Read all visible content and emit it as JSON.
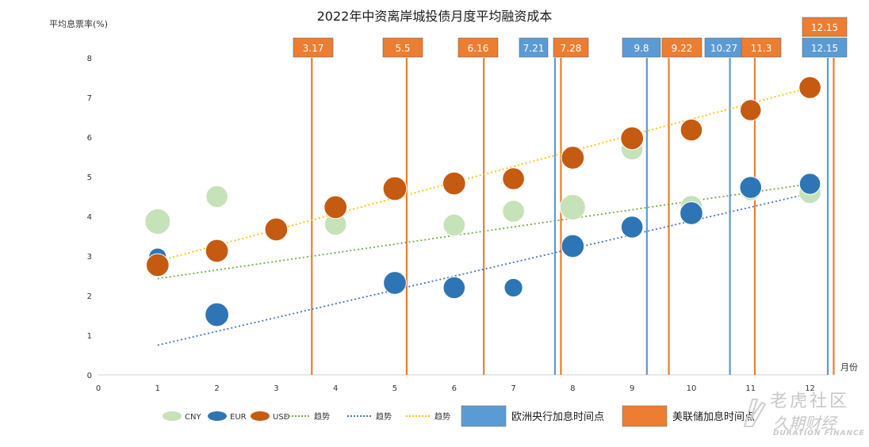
{
  "chart_data": {
    "type": "scatter",
    "title": "2022年中资离岸城投债月度平均融资成本",
    "ylabel": "平均息票率(%)",
    "xlabel": "月份",
    "xlim": [
      0,
      12.3
    ],
    "ylim": [
      0,
      8
    ],
    "x_ticks": [
      0,
      1,
      2,
      3,
      4,
      5,
      6,
      7,
      8,
      9,
      10,
      11,
      12
    ],
    "y_ticks": [
      0,
      1,
      2,
      3,
      4,
      5,
      6,
      7,
      8
    ],
    "grid": false,
    "legend_position": "bottom",
    "series": [
      {
        "name": "CNY",
        "kind": "bubble",
        "color": "#C6E2B8",
        "points": [
          {
            "x": 1,
            "y": 3.87,
            "size": 1.0
          },
          {
            "x": 2,
            "y": 4.5,
            "size": 0.8
          },
          {
            "x": 4,
            "y": 3.8,
            "size": 0.8
          },
          {
            "x": 6,
            "y": 3.78,
            "size": 0.8
          },
          {
            "x": 7,
            "y": 4.13,
            "size": 0.8
          },
          {
            "x": 8,
            "y": 4.23,
            "size": 1.0
          },
          {
            "x": 9,
            "y": 5.7,
            "size": 0.8
          },
          {
            "x": 10,
            "y": 4.25,
            "size": 0.8
          },
          {
            "x": 11,
            "y": 4.65,
            "size": 0.7
          },
          {
            "x": 12,
            "y": 4.6,
            "size": 0.8
          }
        ]
      },
      {
        "name": "EUR",
        "kind": "bubble",
        "color": "#2E75B6",
        "points": [
          {
            "x": 1,
            "y": 2.98,
            "size": 0.55
          },
          {
            "x": 2,
            "y": 1.52,
            "size": 0.9
          },
          {
            "x": 5,
            "y": 2.32,
            "size": 0.85
          },
          {
            "x": 6,
            "y": 2.2,
            "size": 0.8
          },
          {
            "x": 7,
            "y": 2.2,
            "size": 0.6
          },
          {
            "x": 8,
            "y": 3.25,
            "size": 0.85
          },
          {
            "x": 9,
            "y": 3.73,
            "size": 0.8
          },
          {
            "x": 10,
            "y": 4.08,
            "size": 0.85
          },
          {
            "x": 11,
            "y": 4.73,
            "size": 0.8
          },
          {
            "x": 12,
            "y": 4.82,
            "size": 0.75
          }
        ]
      },
      {
        "name": "USD",
        "kind": "bubble",
        "color": "#C55A11",
        "points": [
          {
            "x": 1,
            "y": 2.77,
            "size": 0.85
          },
          {
            "x": 2,
            "y": 3.13,
            "size": 0.85
          },
          {
            "x": 3,
            "y": 3.67,
            "size": 0.85
          },
          {
            "x": 4,
            "y": 4.23,
            "size": 0.85
          },
          {
            "x": 5,
            "y": 4.7,
            "size": 0.9
          },
          {
            "x": 6,
            "y": 4.83,
            "size": 0.85
          },
          {
            "x": 7,
            "y": 4.95,
            "size": 0.8
          },
          {
            "x": 8,
            "y": 5.48,
            "size": 0.85
          },
          {
            "x": 9,
            "y": 5.97,
            "size": 0.85
          },
          {
            "x": 10,
            "y": 6.18,
            "size": 0.8
          },
          {
            "x": 11,
            "y": 6.68,
            "size": 0.75
          },
          {
            "x": 12,
            "y": 7.25,
            "size": 0.8
          }
        ]
      }
    ],
    "trendlines": [
      {
        "name": "趋势",
        "color": "#70AD47",
        "from": [
          1,
          2.43
        ],
        "to": [
          12,
          4.82
        ]
      },
      {
        "name": "趋势",
        "color": "#4472C4",
        "from": [
          1,
          0.75
        ],
        "to": [
          12,
          4.58
        ]
      },
      {
        "name": "趋势",
        "color": "#FFC000",
        "from": [
          1,
          2.87
        ],
        "to": [
          12,
          7.25
        ]
      }
    ],
    "rate_hikes": {
      "eur": {
        "name": "欧洲央行加息时间点",
        "color": "#5B9BD5",
        "label_color": "#ffffff",
        "events": [
          {
            "x": 7.7,
            "label": "7.21"
          },
          {
            "x": 9.25,
            "label": "9.8"
          },
          {
            "x": 10.65,
            "label": "10.27"
          },
          {
            "x": 12.3,
            "label": "12.15"
          }
        ]
      },
      "usd": {
        "name": "美联储加息时间点",
        "color": "#ED7D31",
        "label_color": "#ffffff",
        "events": [
          {
            "x": 3.6,
            "label": "3.17"
          },
          {
            "x": 5.2,
            "label": "5.5"
          },
          {
            "x": 6.5,
            "label": "6.16"
          },
          {
            "x": 7.8,
            "label": "7.28"
          },
          {
            "x": 9.62,
            "label": "9.22"
          },
          {
            "x": 11.07,
            "label": "11.3"
          },
          {
            "x": 12.4,
            "label": "12.15"
          }
        ]
      }
    },
    "legend": {
      "items": [
        {
          "label": "CNY",
          "type": "ellipse",
          "color": "#C6E2B8"
        },
        {
          "label": "EUR",
          "type": "ellipse",
          "color": "#2E75B6"
        },
        {
          "label": "USD",
          "type": "ellipse",
          "color": "#C55A11"
        },
        {
          "label": "趋势",
          "type": "dotted",
          "color": "#70AD47"
        },
        {
          "label": "趋势",
          "type": "dotted",
          "color": "#4472C4"
        },
        {
          "label": "趋势",
          "type": "dotted",
          "color": "#FFC000"
        },
        {
          "label": "欧洲央行加息时间点",
          "type": "box",
          "color": "#5B9BD5"
        },
        {
          "label": "美联储加息时间点",
          "type": "box",
          "color": "#ED7D31"
        }
      ]
    }
  },
  "watermark": {
    "line1": "老虎社区",
    "line2": "久期财经",
    "line3": "DURATION FINANCE"
  }
}
